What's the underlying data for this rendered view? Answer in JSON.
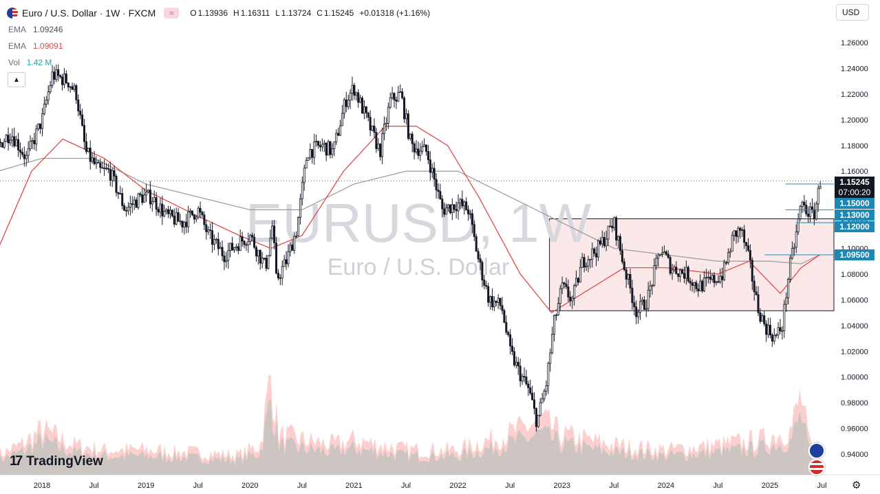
{
  "header": {
    "symbol_title": "Euro / U.S. Dollar",
    "timeframe": "1W",
    "exchange": "FXCM",
    "ohlc": {
      "o_label": "O",
      "o_value": "1.13936",
      "h_label": "H",
      "h_value": "1.16311",
      "l_label": "L",
      "l_value": "1.13724",
      "c_label": "C",
      "c_value": "1.15245",
      "change": "+0.01318 (+1.16%)"
    }
  },
  "indicators": [
    {
      "label": "EMA",
      "value": "1.09246"
    },
    {
      "label": "EMA",
      "value": "1.09091"
    },
    {
      "label": "Vol",
      "value": "1.42 M"
    }
  ],
  "currency_button": "USD",
  "watermark": {
    "ticker": "EURUSD, 1W",
    "name": "Euro / U.S. Dollar"
  },
  "branding": "TradingView",
  "price_tags": {
    "last_price": "1.15245",
    "countdown": "07:00:20",
    "levels": [
      "1.15000",
      "1.13000",
      "1.12000",
      "1.09500"
    ]
  },
  "chart_data": {
    "type": "candlestick",
    "symbol": "EURUSD",
    "timeframe": "1W",
    "y_axis_ticks": [
      "1.26000",
      "1.24000",
      "1.22000",
      "1.20000",
      "1.18000",
      "1.16000",
      "1.14000",
      "1.12000",
      "1.10000",
      "1.08000",
      "1.06000",
      "1.04000",
      "1.02000",
      "1.00000",
      "0.98000",
      "0.96000",
      "0.94000"
    ],
    "x_axis_ticks": [
      "2018",
      "Jul",
      "2019",
      "Jul",
      "2020",
      "Jul",
      "2021",
      "Jul",
      "2022",
      "Jul",
      "2023",
      "Jul",
      "2024",
      "Jul",
      "2025",
      "Jul"
    ],
    "ylim": [
      0.925,
      1.275
    ],
    "last_price": 1.15245,
    "close_path": [
      [
        2017.58,
        1.18
      ],
      [
        2017.7,
        1.19
      ],
      [
        2017.85,
        1.17
      ],
      [
        2018.0,
        1.2
      ],
      [
        2018.1,
        1.235
      ],
      [
        2018.25,
        1.23
      ],
      [
        2018.33,
        1.22
      ],
      [
        2018.42,
        1.175
      ],
      [
        2018.55,
        1.16
      ],
      [
        2018.65,
        1.16
      ],
      [
        2018.8,
        1.13
      ],
      [
        2018.95,
        1.14
      ],
      [
        2019.05,
        1.14
      ],
      [
        2019.2,
        1.125
      ],
      [
        2019.35,
        1.12
      ],
      [
        2019.5,
        1.13
      ],
      [
        2019.6,
        1.11
      ],
      [
        2019.75,
        1.095
      ],
      [
        2019.9,
        1.105
      ],
      [
        2020.0,
        1.11
      ],
      [
        2020.15,
        1.085
      ],
      [
        2020.22,
        1.12
      ],
      [
        2020.25,
        1.075
      ],
      [
        2020.35,
        1.09
      ],
      [
        2020.45,
        1.115
      ],
      [
        2020.55,
        1.175
      ],
      [
        2020.7,
        1.18
      ],
      [
        2020.8,
        1.175
      ],
      [
        2020.92,
        1.215
      ],
      [
        2021.0,
        1.225
      ],
      [
        2021.15,
        1.195
      ],
      [
        2021.25,
        1.175
      ],
      [
        2021.35,
        1.215
      ],
      [
        2021.45,
        1.22
      ],
      [
        2021.55,
        1.18
      ],
      [
        2021.7,
        1.175
      ],
      [
        2021.85,
        1.13
      ],
      [
        2022.0,
        1.135
      ],
      [
        2022.1,
        1.13
      ],
      [
        2022.2,
        1.09
      ],
      [
        2022.3,
        1.06
      ],
      [
        2022.42,
        1.055
      ],
      [
        2022.5,
        1.02
      ],
      [
        2022.58,
        1.005
      ],
      [
        2022.68,
        0.99
      ],
      [
        2022.76,
        0.965
      ],
      [
        2022.85,
        0.995
      ],
      [
        2022.92,
        1.04
      ],
      [
        2023.0,
        1.07
      ],
      [
        2023.1,
        1.06
      ],
      [
        2023.2,
        1.09
      ],
      [
        2023.35,
        1.1
      ],
      [
        2023.5,
        1.12
      ],
      [
        2023.6,
        1.085
      ],
      [
        2023.72,
        1.05
      ],
      [
        2023.82,
        1.06
      ],
      [
        2023.95,
        1.1
      ],
      [
        2024.05,
        1.085
      ],
      [
        2024.2,
        1.08
      ],
      [
        2024.3,
        1.07
      ],
      [
        2024.45,
        1.075
      ],
      [
        2024.55,
        1.08
      ],
      [
        2024.65,
        1.11
      ],
      [
        2024.72,
        1.115
      ],
      [
        2024.8,
        1.09
      ],
      [
        2024.88,
        1.055
      ],
      [
        2024.95,
        1.04
      ],
      [
        2025.05,
        1.03
      ],
      [
        2025.12,
        1.04
      ],
      [
        2025.18,
        1.08
      ],
      [
        2025.25,
        1.11
      ],
      [
        2025.3,
        1.135
      ],
      [
        2025.35,
        1.13
      ],
      [
        2025.42,
        1.125
      ],
      [
        2025.47,
        1.145
      ],
      [
        2025.48,
        1.1525
      ]
    ],
    "ema_red": [
      [
        2017.58,
        1.1
      ],
      [
        2017.9,
        1.16
      ],
      [
        2018.2,
        1.185
      ],
      [
        2018.6,
        1.17
      ],
      [
        2019.0,
        1.145
      ],
      [
        2019.5,
        1.125
      ],
      [
        2019.9,
        1.11
      ],
      [
        2020.2,
        1.1
      ],
      [
        2020.5,
        1.11
      ],
      [
        2020.9,
        1.16
      ],
      [
        2021.3,
        1.195
      ],
      [
        2021.6,
        1.195
      ],
      [
        2021.9,
        1.18
      ],
      [
        2022.2,
        1.14
      ],
      [
        2022.6,
        1.08
      ],
      [
        2022.9,
        1.05
      ],
      [
        2023.2,
        1.065
      ],
      [
        2023.6,
        1.085
      ],
      [
        2024.0,
        1.085
      ],
      [
        2024.5,
        1.08
      ],
      [
        2024.8,
        1.09
      ],
      [
        2025.1,
        1.065
      ],
      [
        2025.3,
        1.085
      ],
      [
        2025.48,
        1.095
      ]
    ],
    "ema_gray": [
      [
        2017.58,
        1.16
      ],
      [
        2018.0,
        1.17
      ],
      [
        2018.5,
        1.17
      ],
      [
        2019.0,
        1.15
      ],
      [
        2019.5,
        1.14
      ],
      [
        2020.0,
        1.13
      ],
      [
        2020.5,
        1.13
      ],
      [
        2021.0,
        1.15
      ],
      [
        2021.5,
        1.16
      ],
      [
        2022.0,
        1.16
      ],
      [
        2022.5,
        1.14
      ],
      [
        2023.0,
        1.12
      ],
      [
        2023.5,
        1.1
      ],
      [
        2024.0,
        1.095
      ],
      [
        2024.5,
        1.09
      ],
      [
        2025.0,
        1.09
      ],
      [
        2025.3,
        1.088
      ],
      [
        2025.48,
        1.095
      ]
    ],
    "volume_profile": [
      [
        2017.58,
        0.2
      ],
      [
        2017.8,
        0.3
      ],
      [
        2018.0,
        0.45
      ],
      [
        2018.3,
        0.3
      ],
      [
        2018.6,
        0.25
      ],
      [
        2019.0,
        0.25
      ],
      [
        2019.5,
        0.22
      ],
      [
        2019.9,
        0.2
      ],
      [
        2020.1,
        0.3
      ],
      [
        2020.2,
        1.0
      ],
      [
        2020.28,
        0.4
      ],
      [
        2020.5,
        0.35
      ],
      [
        2020.8,
        0.3
      ],
      [
        2021.0,
        0.35
      ],
      [
        2021.5,
        0.25
      ],
      [
        2022.0,
        0.25
      ],
      [
        2022.3,
        0.35
      ],
      [
        2022.6,
        0.45
      ],
      [
        2022.8,
        0.55
      ],
      [
        2023.0,
        0.4
      ],
      [
        2023.5,
        0.3
      ],
      [
        2024.0,
        0.25
      ],
      [
        2024.5,
        0.3
      ],
      [
        2024.9,
        0.35
      ],
      [
        2025.2,
        0.45
      ],
      [
        2025.3,
        0.8
      ],
      [
        2025.38,
        0.3
      ],
      [
        2025.48,
        0.2
      ]
    ],
    "range_box": {
      "from": 2022.88,
      "to": "open",
      "top": 1.123,
      "bottom": 1.0515
    },
    "horizontal_levels": [
      {
        "price": 1.15,
        "from": 2025.15
      },
      {
        "price": 1.13,
        "from": 2025.15
      },
      {
        "price": 1.12,
        "from": 2025.25
      },
      {
        "price": 1.095,
        "from": 2024.95
      }
    ],
    "colors": {
      "up": "#26a69a",
      "down": "#ef5350",
      "ema_red": "#e04a4a",
      "ema_gray": "#9e9e9e",
      "box_fill": "#fbe9e9",
      "price_tag": "#131722",
      "level_tag": "#1e88b5"
    }
  }
}
